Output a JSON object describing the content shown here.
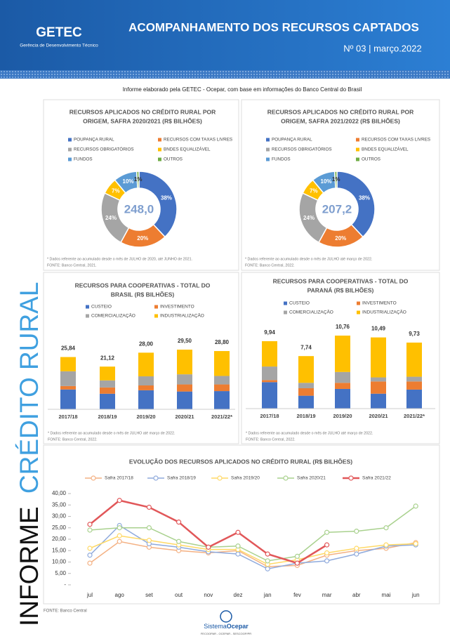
{
  "header": {
    "logo": "GETEC",
    "logo_subtitle": "Gerência de Desenvolvimento Técnico",
    "title": "ACOMPANHAMENTO DOS RECURSOS CAPTADOS",
    "issue": "Nº 03 | março.2022"
  },
  "intro": "Informe elaborado pela GETEC - Ocepar, com base em informações do Banco Central do Brasil",
  "sidebar": {
    "part1": "INFORME",
    "part2": "CRÉDITO RURAL"
  },
  "chart_data": [
    {
      "type": "pie",
      "title": [
        "RECURSOS APLICADOS NO CRÉDITO RURAL POR",
        "ORIGEM, SAFRA 2020/2021 (R$ BILHÕES)"
      ],
      "categories": [
        "POUPANÇA RURAL",
        "RECURSOS COM TAXAS LIVRES",
        "RECURSOS OBRIGATÓRIOS",
        "BNDES EQUALIZÁVEL",
        "FUNDOS",
        "OUTROS"
      ],
      "values": [
        38,
        20,
        24,
        7,
        10,
        1
      ],
      "value_labels": [
        "38%",
        "20%",
        "24%",
        "7%",
        "10%",
        "1%"
      ],
      "colors": [
        "#4472c4",
        "#ed7d31",
        "#a5a5a5",
        "#ffc000",
        "#5b9bd5",
        "#70ad47"
      ],
      "total": 248.0,
      "total_label": "248,0",
      "notes": [
        "* Dados referente ao acumulado desde o mês de JULHO de 2020, até JUNHO de 2021.",
        "FONTE: Banco Central, 2021."
      ]
    },
    {
      "type": "pie",
      "title": [
        "RECURSOS APLICADOS NO CRÉDITO RURAL POR",
        "ORIGEM, SAFRA 2021/2022 (R$ BILHÕES)"
      ],
      "categories": [
        "POUPANÇA RURAL",
        "RECURSOS COM TAXAS LIVRES",
        "RECURSOS OBRIGATÓRIOS",
        "BNDES EQUALIZÁVEL",
        "FUNDOS",
        "OUTROS"
      ],
      "values": [
        38,
        20,
        24,
        7,
        10,
        1
      ],
      "value_labels": [
        "38%",
        "20%",
        "24%",
        "7%",
        "10%",
        "1%"
      ],
      "colors": [
        "#4472c4",
        "#ed7d31",
        "#a5a5a5",
        "#ffc000",
        "#5b9bd5",
        "#70ad47"
      ],
      "total": 207.2,
      "total_label": "207,2",
      "notes": [
        "* Dados referente ao acumulado desde o mês de JULHO até março de 2022.",
        "FONTE: Banco Central, 2022."
      ]
    },
    {
      "type": "bar",
      "stacked": true,
      "title": [
        "RECURSOS PARA COOPERATIVAS - TOTAL DO",
        "BRASIL (R$ BILHÕES)"
      ],
      "categories": [
        "2017/18",
        "2018/19",
        "2019/20",
        "2020/21",
        "2021/22*"
      ],
      "series": [
        {
          "name": "CUSTEIO",
          "color": "#4472c4",
          "values": [
            9.8,
            7.7,
            9.4,
            8.8,
            9.0
          ]
        },
        {
          "name": "INVESTIMENTO",
          "color": "#ed7d31",
          "values": [
            1.7,
            3.1,
            2.4,
            3.5,
            3.3
          ]
        },
        {
          "name": "COMERCIALIZAÇÃO",
          "color": "#a5a5a5",
          "values": [
            7.3,
            3.5,
            4.5,
            5.0,
            4.2
          ]
        },
        {
          "name": "INDUSTRIALIZAÇÃO",
          "color": "#ffc000",
          "values": [
            7.04,
            6.82,
            11.7,
            12.2,
            12.3
          ]
        }
      ],
      "totals": [
        25.84,
        21.12,
        28.0,
        29.5,
        28.8
      ],
      "total_labels": [
        "25,84",
        "21,12",
        "28,00",
        "29,50",
        "28,80"
      ],
      "notes": [
        "* Dados referente ao acumulado desde o mês de JULHO até março de 2022.",
        "FONTE: Banco Central, 2022."
      ]
    },
    {
      "type": "bar",
      "stacked": true,
      "title": [
        "RECURSOS PARA COOPERATIVAS - TOTAL DO",
        "PARANÁ (R$ BILHÕES)"
      ],
      "categories": [
        "2017/18",
        "2018/19",
        "2019/20",
        "2020/21",
        "2021/22*"
      ],
      "series": [
        {
          "name": "CUSTEIO",
          "color": "#4472c4",
          "values": [
            3.9,
            1.9,
            2.9,
            2.2,
            2.8
          ]
        },
        {
          "name": "INVESTIMENTO",
          "color": "#ed7d31",
          "values": [
            0.3,
            1.1,
            0.9,
            1.8,
            1.2
          ]
        },
        {
          "name": "COMERCIALIZAÇÃO",
          "color": "#a5a5a5",
          "values": [
            2.0,
            0.8,
            1.6,
            0.6,
            0.7
          ]
        },
        {
          "name": "INDUSTRIALIZAÇÃO",
          "color": "#ffc000",
          "values": [
            3.74,
            3.94,
            5.36,
            5.89,
            5.03
          ]
        }
      ],
      "totals": [
        9.94,
        7.74,
        10.76,
        10.49,
        9.73
      ],
      "total_labels": [
        "9,94",
        "7,74",
        "10,76",
        "10,49",
        "9,73"
      ],
      "notes": [
        "* Dados referente ao acumulado desde o mês de JULHO até março de 2022.",
        "FONTE: Banco Central, 2022."
      ]
    },
    {
      "type": "line",
      "title": [
        "EVOLUÇÃO DOS RECURSOS APLICADOS NO CRÉDITO RURAL (R$ BILHÕES)"
      ],
      "categories": [
        "jul",
        "ago",
        "set",
        "out",
        "nov",
        "dez",
        "jan",
        "fev",
        "mar",
        "abr",
        "mai",
        "jun"
      ],
      "ylim": [
        0,
        40
      ],
      "yticks": [
        {
          "value": 0,
          "label": "-"
        },
        {
          "value": 5,
          "label": "5,00"
        },
        {
          "value": 10,
          "label": "10,00"
        },
        {
          "value": 15,
          "label": "15,00"
        },
        {
          "value": 20,
          "label": "20,00"
        },
        {
          "value": 25,
          "label": "25,00"
        },
        {
          "value": 30,
          "label": "30,00"
        },
        {
          "value": 35,
          "label": "35,00"
        },
        {
          "value": 40,
          "label": "40,00"
        }
      ],
      "series": [
        {
          "name": "Safra 2017/18",
          "color": "#f4b183",
          "values": [
            9.5,
            19,
            16.5,
            15,
            14,
            15,
            8,
            8.5,
            13,
            15,
            16,
            18.5
          ]
        },
        {
          "name": "Safra 2018/19",
          "color": "#8faadc",
          "values": [
            13,
            26,
            18,
            16.5,
            14.5,
            13.5,
            7,
            9.5,
            10.5,
            13.5,
            17,
            17.5
          ]
        },
        {
          "name": "Safra 2019/20",
          "color": "#ffd966",
          "values": [
            16,
            21.5,
            19.5,
            17.5,
            15.5,
            15.5,
            9,
            11,
            14,
            16,
            17.5,
            18
          ]
        },
        {
          "name": "Safra 2020/21",
          "color": "#a9d18e",
          "values": [
            24,
            25,
            25,
            19,
            16.5,
            17,
            10.5,
            12.5,
            23,
            23.5,
            25,
            34.5
          ]
        },
        {
          "name": "Safra 2021/22",
          "color": "#e15759",
          "values": [
            26.5,
            37,
            34,
            27.5,
            16.5,
            23,
            13.5,
            9.5,
            17.5,
            null,
            null,
            null
          ]
        }
      ]
    }
  ],
  "source": "FONTE: Banco Central",
  "footer": {
    "brand_part1": "Sistema",
    "brand_part2": "Ocepar",
    "tagline": "FECOOPAR - OCEPAR - SESCOOP/PR"
  }
}
